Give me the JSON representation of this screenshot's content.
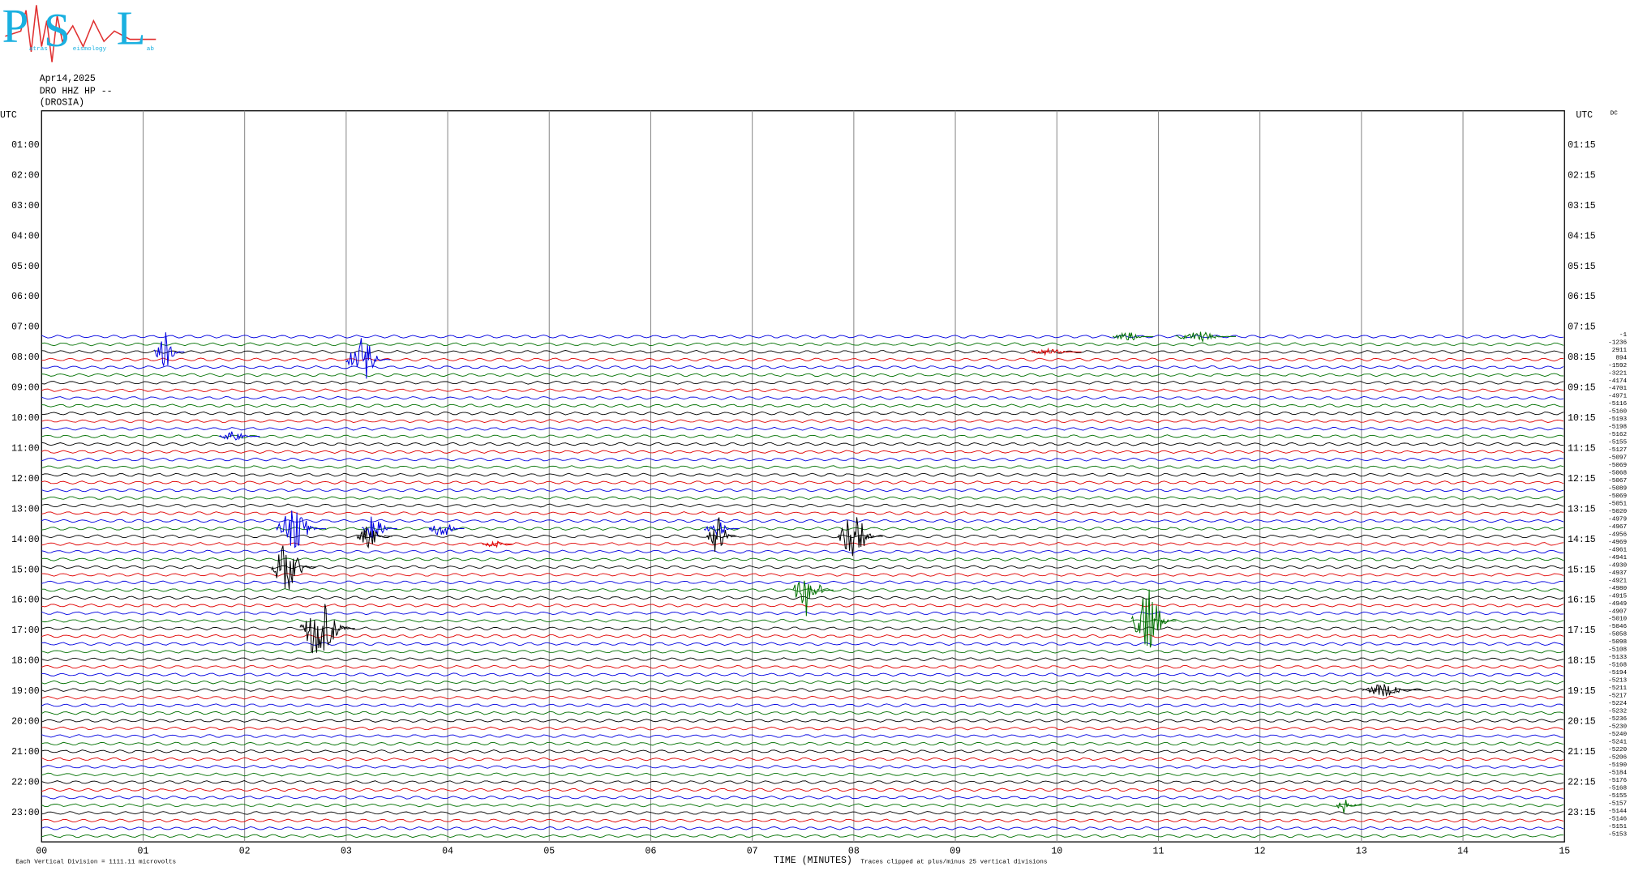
{
  "logo": {
    "letters": [
      "P",
      "S",
      "L"
    ],
    "small": [
      "atras",
      "eismology",
      "ab"
    ]
  },
  "header": {
    "date": "Apr14,2025",
    "station": "DRO HHZ HP --",
    "place": "(DROSIA)"
  },
  "utc_label": "UTC",
  "dc_label": "DC",
  "left_times": [
    "01:00",
    "02:00",
    "03:00",
    "04:00",
    "05:00",
    "06:00",
    "07:00",
    "08:00",
    "09:00",
    "10:00",
    "11:00",
    "12:00",
    "13:00",
    "14:00",
    "15:00",
    "16:00",
    "17:00",
    "18:00",
    "19:00",
    "20:00",
    "21:00",
    "22:00",
    "23:00"
  ],
  "right_times": [
    "01:15",
    "02:15",
    "03:15",
    "04:15",
    "05:15",
    "06:15",
    "07:15",
    "08:15",
    "09:15",
    "10:15",
    "11:15",
    "12:15",
    "13:15",
    "14:15",
    "15:15",
    "16:15",
    "17:15",
    "18:15",
    "19:15",
    "20:15",
    "21:15",
    "22:15",
    "23:15"
  ],
  "dc_offsets": [
    -1,
    -1236,
    2911,
    894,
    -1592,
    -3221,
    -4174,
    -4701,
    -4971,
    -5116,
    -5160,
    -5193,
    -5198,
    -5162,
    -5155,
    -5127,
    -5097,
    -5069,
    -5068,
    -5067,
    -5089,
    -5069,
    -5051,
    -5020,
    -4979,
    -4967,
    -4956,
    -4969,
    -4961,
    -4941,
    -4930,
    -4937,
    -4921,
    -4980,
    -4915,
    -4949,
    -4907,
    -5010,
    -5046,
    -5058,
    -5098,
    -5108,
    -5133,
    -5168,
    -5194,
    -5213,
    -5211,
    -5217,
    -5224,
    -5232,
    -5236,
    -5230,
    -5240,
    -5241,
    -5220,
    -5206,
    -5190,
    -5184,
    -5176,
    -5168,
    -5155,
    -5157,
    -5144,
    -5146,
    -5151,
    -5153
  ],
  "trace_colors": [
    "#0000e0",
    "#007000",
    "#000000",
    "#e00000"
  ],
  "x_labels": [
    "00",
    "01",
    "02",
    "03",
    "04",
    "05",
    "06",
    "07",
    "08",
    "09",
    "10",
    "11",
    "12",
    "13",
    "14",
    "15"
  ],
  "x_title": "TIME (MINUTES)",
  "clip_note": "Traces clipped at plus/minus 25 vertical divisions",
  "division_note": "Each Vertical Division = 1111.11 microvolts",
  "events": [
    {
      "row": 2,
      "minute": 1.26,
      "duration": 0.3,
      "amplitude": 20,
      "color": "#0000e0"
    },
    {
      "row": 3,
      "minute": 3.22,
      "duration": 0.45,
      "amplitude": 22,
      "color": "#0000e0"
    },
    {
      "row": 0,
      "minute": 11.47,
      "duration": 0.6,
      "amplitude": 6,
      "color": "#007000"
    },
    {
      "row": 0,
      "minute": 10.75,
      "duration": 0.4,
      "amplitude": 5,
      "color": "#007000"
    },
    {
      "row": 2,
      "minute": 10.0,
      "duration": 0.5,
      "amplitude": 3,
      "color": "#e00000"
    },
    {
      "row": 13,
      "minute": 1.95,
      "duration": 0.4,
      "amplitude": 5,
      "color": "#0000e0"
    },
    {
      "row": 25,
      "minute": 2.56,
      "duration": 0.5,
      "amplitude": 20,
      "color": "#0000e0"
    },
    {
      "row": 25,
      "minute": 3.33,
      "duration": 0.35,
      "amplitude": 14,
      "color": "#0000e0"
    },
    {
      "row": 25,
      "minute": 3.99,
      "duration": 0.35,
      "amplitude": 10,
      "color": "#0000e0"
    },
    {
      "row": 25,
      "minute": 6.7,
      "duration": 0.35,
      "amplitude": 8,
      "color": "#0000e0"
    },
    {
      "row": 26,
      "minute": 3.28,
      "duration": 0.35,
      "amplitude": 12,
      "color": "#000000"
    },
    {
      "row": 26,
      "minute": 6.7,
      "duration": 0.3,
      "amplitude": 20,
      "color": "#000000"
    },
    {
      "row": 26,
      "minute": 8.07,
      "duration": 0.45,
      "amplitude": 22,
      "color": "#000000"
    },
    {
      "row": 27,
      "minute": 4.49,
      "duration": 0.3,
      "amplitude": 4,
      "color": "#e00000"
    },
    {
      "row": 30,
      "minute": 2.49,
      "duration": 0.45,
      "amplitude": 28,
      "color": "#000000"
    },
    {
      "row": 33,
      "minute": 7.6,
      "duration": 0.4,
      "amplitude": 28,
      "color": "#007000"
    },
    {
      "row": 38,
      "minute": 2.82,
      "duration": 0.55,
      "amplitude": 32,
      "color": "#000000"
    },
    {
      "row": 37,
      "minute": 10.96,
      "duration": 0.45,
      "amplitude": 32,
      "color": "#007000"
    },
    {
      "row": 46,
      "minute": 13.31,
      "duration": 0.6,
      "amplitude": 6,
      "color": "#000000"
    },
    {
      "row": 61,
      "minute": 12.88,
      "duration": 0.25,
      "amplitude": 8,
      "color": "#007000"
    }
  ]
}
